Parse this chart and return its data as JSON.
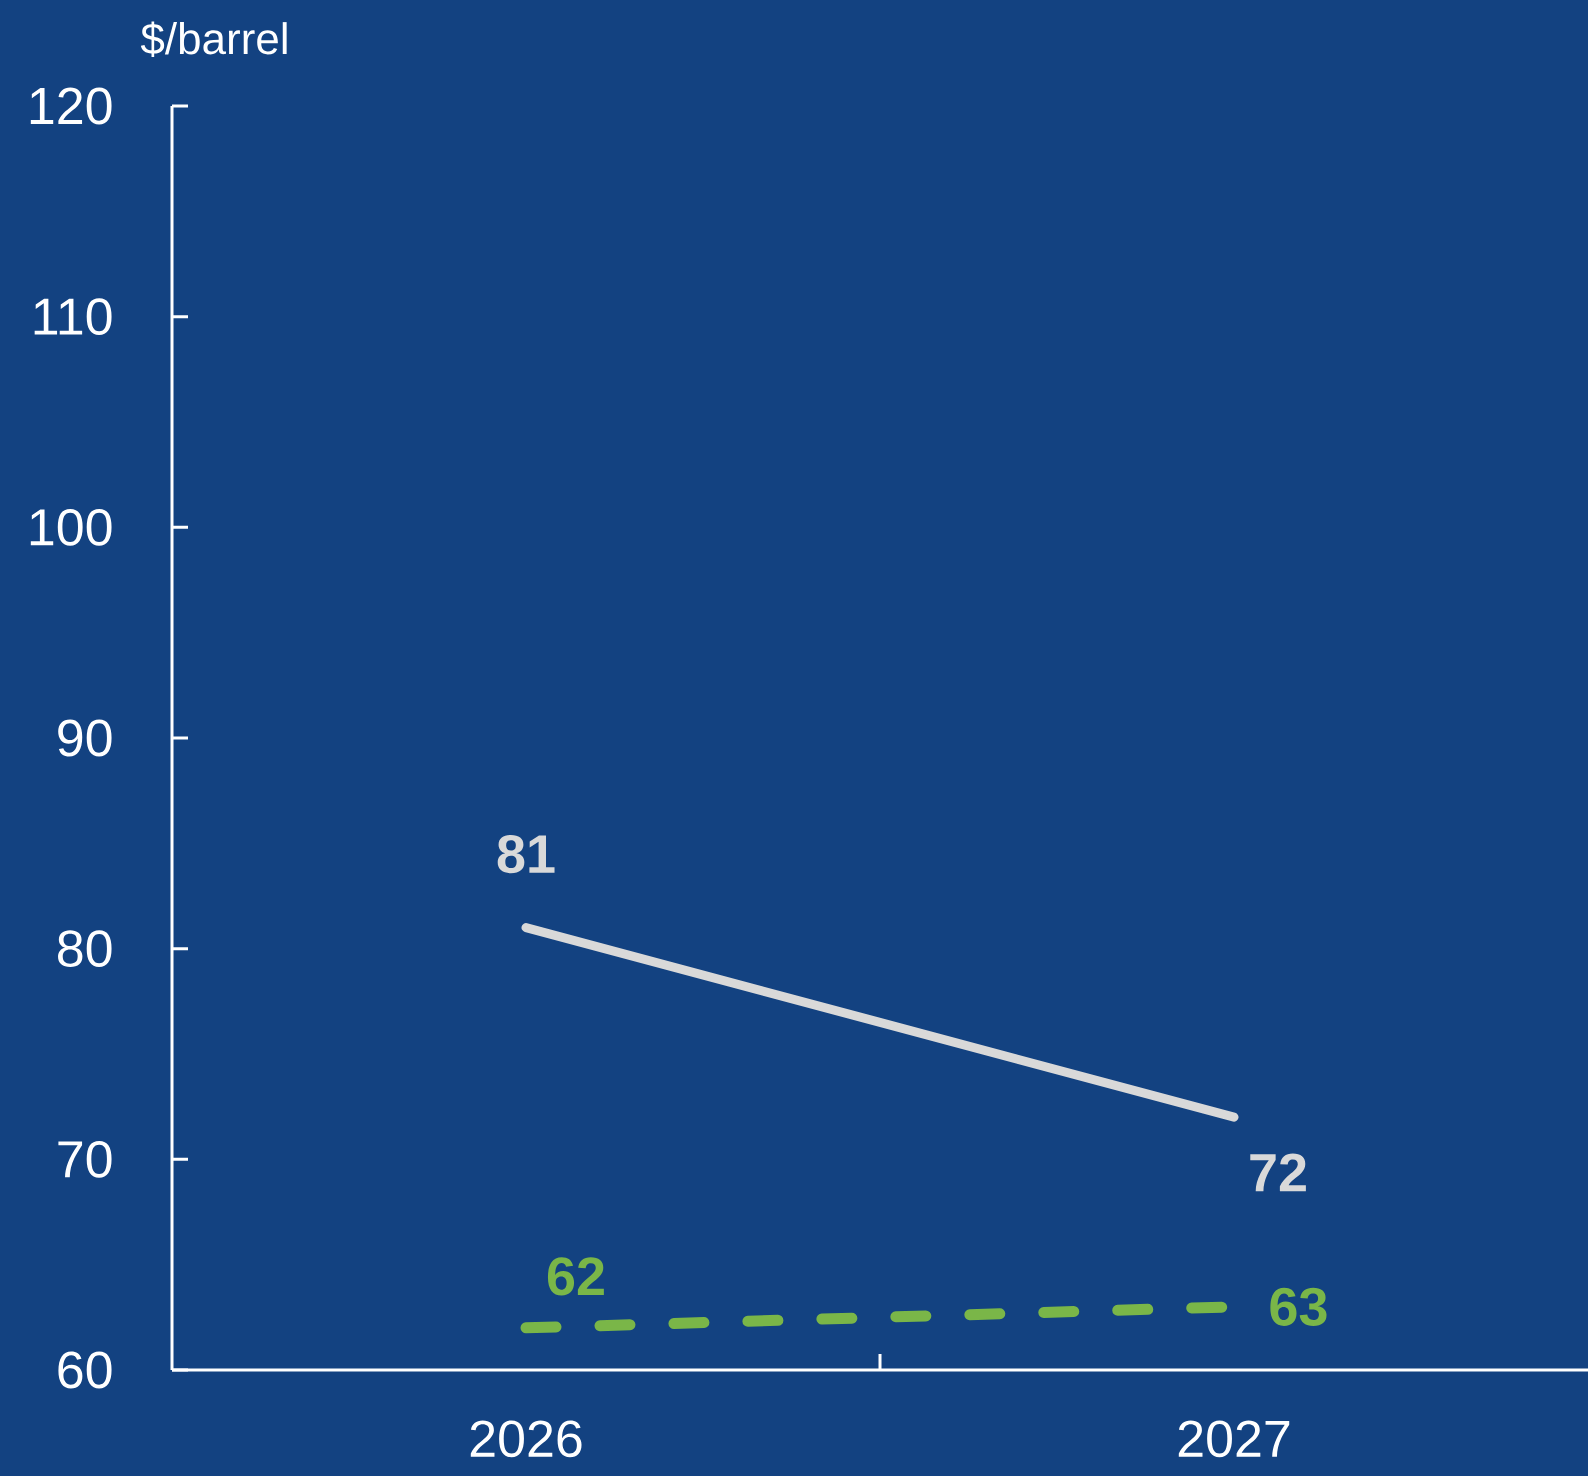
{
  "chart_data": {
    "type": "line",
    "ylabel": "$/barrel",
    "categories": [
      "2026",
      "2027"
    ],
    "series": [
      {
        "color": "#d9d9d9",
        "values": [
          81,
          72
        ],
        "line_style": "solid"
      },
      {
        "color": "#7ab648",
        "values": [
          62,
          63
        ],
        "line_style": "dashed"
      }
    ],
    "ylim": [
      60,
      120
    ],
    "yticks": [
      60,
      70,
      80,
      90,
      100,
      110,
      120
    ],
    "data_labels": true
  }
}
